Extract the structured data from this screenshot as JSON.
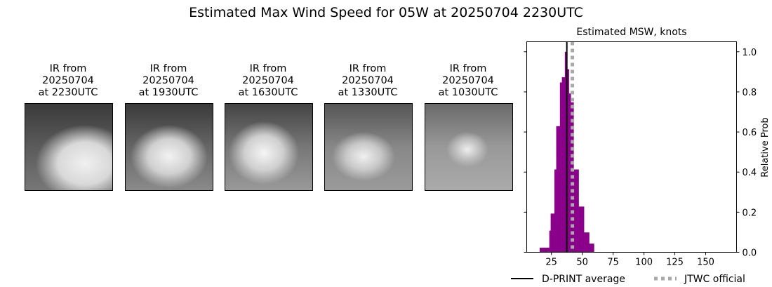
{
  "title": "Estimated Max Wind Speed for 05W at 20250704 2230UTC",
  "panels": [
    {
      "line1": "IR from",
      "line2": "20250704",
      "line3": "at 2230UTC"
    },
    {
      "line1": "IR from",
      "line2": "20250704",
      "line3": "at 1930UTC"
    },
    {
      "line1": "IR from",
      "line2": "20250704",
      "line3": "at 1630UTC"
    },
    {
      "line1": "IR from",
      "line2": "20250704",
      "line3": "at 1330UTC"
    },
    {
      "line1": "IR from",
      "line2": "20250704",
      "line3": "at 1030UTC"
    }
  ],
  "chart_data": {
    "type": "bar",
    "title": "Estimated MSW, knots",
    "xlabel": "",
    "ylabel": "Relative Prob",
    "xlim": [
      5,
      175
    ],
    "ylim": [
      0,
      1.05
    ],
    "xticks": [
      25,
      50,
      75,
      100,
      125,
      150
    ],
    "yticks": [
      "0.0",
      "0.2",
      "0.4",
      "0.6",
      "0.8",
      "1.0"
    ],
    "bar_color": "#8b008b",
    "bins": [
      {
        "x0": 15.5,
        "x1": 23.3,
        "y": 0.023
      },
      {
        "x0": 23.3,
        "x1": 24.4,
        "y": 0.108
      },
      {
        "x0": 24.4,
        "x1": 27.4,
        "y": 0.193
      },
      {
        "x0": 27.4,
        "x1": 28.9,
        "y": 0.413
      },
      {
        "x0": 28.9,
        "x1": 31.9,
        "y": 0.629
      },
      {
        "x0": 31.9,
        "x1": 33.5,
        "y": 0.847
      },
      {
        "x0": 33.5,
        "x1": 35.9,
        "y": 0.873
      },
      {
        "x0": 35.9,
        "x1": 36.9,
        "y": 1.0
      },
      {
        "x0": 36.9,
        "x1": 39.2,
        "y": 0.913
      },
      {
        "x0": 39.2,
        "x1": 40.7,
        "y": 0.792
      },
      {
        "x0": 40.7,
        "x1": 43.0,
        "y": 0.748
      },
      {
        "x0": 43.0,
        "x1": 47.1,
        "y": 0.413
      },
      {
        "x0": 47.1,
        "x1": 51.4,
        "y": 0.228
      },
      {
        "x0": 51.4,
        "x1": 55.6,
        "y": 0.099
      },
      {
        "x0": 55.6,
        "x1": 59.5,
        "y": 0.043
      }
    ],
    "dprint_average": 37.5,
    "jtwc_official": 42,
    "legend": [
      {
        "label": "D-PRINT average",
        "color": "#000000",
        "style": "solid"
      },
      {
        "label": "JTWC official",
        "color": "#a9a9a9",
        "style": "dotted"
      }
    ],
    "legend_position": "bottom"
  }
}
